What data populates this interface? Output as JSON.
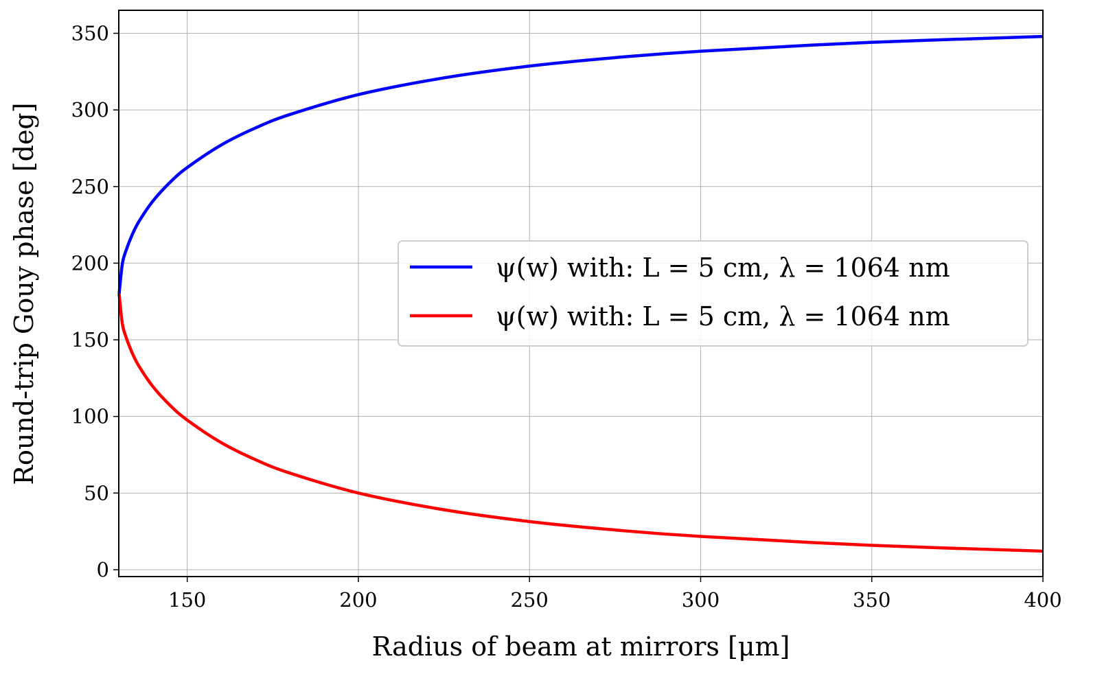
{
  "chart_data": {
    "type": "line",
    "title": "",
    "xlabel": "Radius of beam at mirrors [μm]",
    "ylabel": "Round-trip Gouy phase [deg]",
    "xlim": [
      130,
      400
    ],
    "ylim": [
      -4.5,
      365
    ],
    "xticks": [
      150,
      200,
      250,
      300,
      350,
      400
    ],
    "yticks": [
      0,
      50,
      100,
      150,
      200,
      250,
      300,
      350
    ],
    "xtick_labels": [
      "150",
      "200",
      "250",
      "300",
      "350",
      "400"
    ],
    "ytick_labels": [
      "0",
      "50",
      "100",
      "150",
      "200",
      "250",
      "300",
      "350"
    ],
    "grid": true,
    "legend_position": "center-right",
    "x": [
      130.1,
      131,
      132,
      134,
      136,
      140,
      145,
      150,
      160,
      170,
      180,
      200,
      225,
      250,
      275,
      300,
      350,
      400
    ],
    "series": [
      {
        "name": "ψ(w) with: L = 5 cm, λ = 1064 nm",
        "color": "#0000ff",
        "values": [
          180,
          199.0,
          207.5,
          219.0,
          227.6,
          240.6,
          252.8,
          262.4,
          277.2,
          288.3,
          297.0,
          310.0,
          320.9,
          328.6,
          334.1,
          338.3,
          344.1,
          347.9
        ]
      },
      {
        "name": "ψ(w) with: L = 5 cm, λ = 1064 nm",
        "color": "#ff0000",
        "values": [
          180,
          161.0,
          152.5,
          141.0,
          132.4,
          119.4,
          107.2,
          97.6,
          82.8,
          71.7,
          63.0,
          50.0,
          39.1,
          31.4,
          25.9,
          21.7,
          15.9,
          12.1
        ]
      }
    ]
  }
}
